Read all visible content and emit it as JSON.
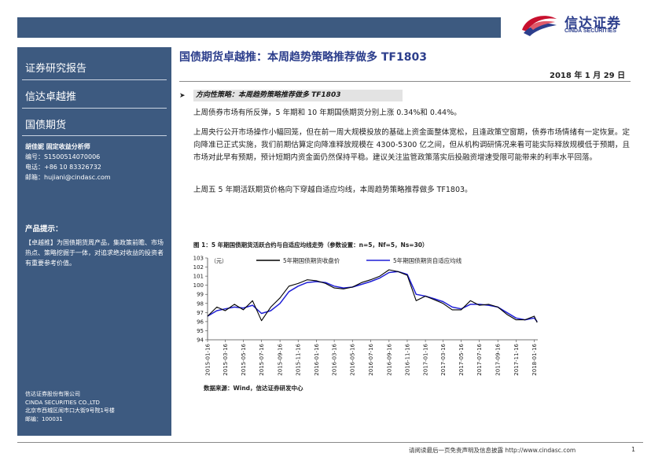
{
  "header": {
    "logo_cn": "信达证券",
    "logo_en": "CINDA SECURITIES",
    "brand_colors": {
      "navy": "#3d5a80",
      "red": "#c8102e",
      "blue": "#2c3e8c"
    }
  },
  "sidebar": {
    "report_type": "证券研究报告",
    "series": "信达卓越推",
    "category": "国债期货",
    "analyst": {
      "name_title": "胡佳妮  固定收益分析师",
      "id_label": "编号：",
      "id": "S1500514070006",
      "phone_label": "电话：",
      "phone": "+86 10 83326732",
      "email_label": "邮箱：",
      "email": "hujiani@cindasc.com"
    },
    "tip_title": "产品提示：",
    "tip_text": "【卓越推】为国债期货周产品，集政策前瞻、市场热点、策略挖掘于一体，对追求绝对收益的投资者有重要参考价值。",
    "company": {
      "name_cn": "信达证券股份有限公司",
      "name_en": "CINDA SECURITIES CO.,LTD",
      "address": "北京市西城区闹市口大街9号院1号楼",
      "postcode_label": "邮编：",
      "postcode": "100031"
    }
  },
  "main": {
    "title": "国债期货卓越推：本周趋势策略推荐做多 TF1803",
    "date": "2018 年 1 月 29 日",
    "section_heading": "方向性策略：本周趋势策略推荐做多 TF1803",
    "paragraphs": [
      "上周债券市场有所反弹，5 年期和 10 年期国债期货分别上涨 0.34%和 0.44%。",
      "上周央行公开市场操作小幅回笼，但在前一周大规模投放的基础上资金面整体宽松，且逢政策空窗期，债券市场情绪有一定恢复。定向降准已正式实施，我们前期估算定向降准释放规模在 4300-5300 亿之间，但从机构调研情况来看可能实际释放规模低于预期，且市场对此早有预期，预计短期内资金面仍然保持平稳。建议关注监管政策落实后投融资增速受限可能带来的利率水平回落。",
      "上周五 5 年期活跃期货价格向下穿越自适应均线，本周趋势策略推荐做多 TF1803。"
    ],
    "figure_caption": "图 1：5 年期国债期货活跃合约与自适应均线走势（参数设置：n=5，Nf=5，Ns=30）",
    "source": "数据来源：Wind，信达证券研发中心"
  },
  "footer": {
    "disclaimer": "请阅读最后一页免责声明及信息披露 http://www.cindasc.com",
    "page": "1"
  },
  "chart_data": {
    "type": "line",
    "unit_label": "（元）",
    "ylim": [
      94,
      103
    ],
    "yticks": [
      "103",
      "102",
      "101",
      "100",
      "99",
      "98",
      "97",
      "96",
      "95",
      "94"
    ],
    "xticks": [
      "2015-01-16",
      "2015-03-16",
      "2015-05-16",
      "2015-07-16",
      "2015-09-16",
      "2015-11-16",
      "2016-01-16",
      "2016-03-16",
      "2016-05-16",
      "2016-07-16",
      "2016-09-16",
      "2016-11-16",
      "2017-01-16",
      "2017-03-16",
      "2017-05-16",
      "2017-07-16",
      "2017-09-16",
      "2017-11-16",
      "2018-01-16"
    ],
    "x": [
      "2015-01-16",
      "2015-02-16",
      "2015-03-16",
      "2015-04-16",
      "2015-05-16",
      "2015-06-16",
      "2015-07-16",
      "2015-08-16",
      "2015-09-16",
      "2015-10-16",
      "2015-11-16",
      "2015-12-16",
      "2016-01-16",
      "2016-02-16",
      "2016-03-16",
      "2016-04-16",
      "2016-05-16",
      "2016-06-16",
      "2016-07-16",
      "2016-08-16",
      "2016-09-16",
      "2016-10-16",
      "2016-11-16",
      "2016-12-16",
      "2017-01-16",
      "2017-02-16",
      "2017-03-16",
      "2017-04-16",
      "2017-05-16",
      "2017-06-16",
      "2017-07-16",
      "2017-08-16",
      "2017-09-16",
      "2017-10-16",
      "2017-11-16",
      "2017-12-16",
      "2018-01-16",
      "2018-01-26"
    ],
    "series": [
      {
        "name": "5年期国债期货收盘价",
        "color": "#000000",
        "values": [
          96.6,
          97.6,
          97.2,
          97.9,
          97.3,
          98.3,
          96.1,
          97.6,
          98.6,
          99.9,
          100.2,
          100.6,
          100.5,
          100.2,
          99.7,
          99.6,
          99.8,
          100.3,
          100.6,
          101.0,
          101.7,
          101.5,
          101.1,
          98.3,
          98.8,
          98.4,
          98.0,
          97.3,
          97.3,
          98.3,
          97.8,
          97.9,
          97.6,
          96.8,
          96.2,
          96.2,
          96.6,
          95.9
        ]
      },
      {
        "name": "5年期国债期货自适应均线",
        "color": "#1f1fd6",
        "values": [
          96.6,
          97.2,
          97.4,
          97.6,
          97.5,
          97.8,
          96.9,
          97.2,
          98.0,
          99.3,
          99.9,
          100.3,
          100.4,
          100.3,
          99.9,
          99.7,
          99.8,
          100.1,
          100.4,
          100.8,
          101.4,
          101.5,
          101.2,
          99.0,
          98.8,
          98.5,
          98.2,
          97.6,
          97.4,
          97.9,
          97.9,
          97.8,
          97.6,
          97.0,
          96.4,
          96.2,
          96.4,
          96.0
        ]
      }
    ]
  }
}
